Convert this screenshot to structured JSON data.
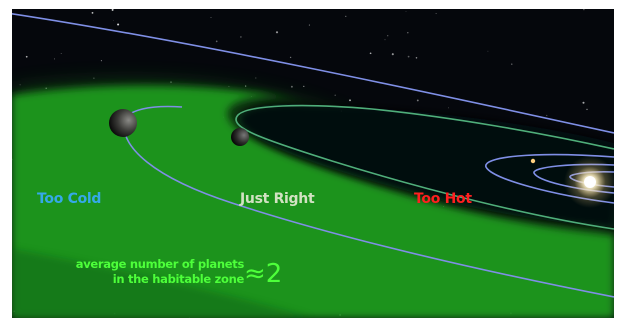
{
  "zones": {
    "too_cold": "Too Cold",
    "just_right": "Just Right",
    "too_hot": "Too Hot"
  },
  "caption": {
    "line1": "average number of planets",
    "line2": "in the habitable zone"
  },
  "approx_value": "≈2",
  "colors": {
    "space": "#05070c",
    "habitable_zone": "#1f9a1f",
    "orbit": "#7f8fe6",
    "too_cold": "#35a9e8",
    "just_right": "#d2e2c2",
    "too_hot": "#ff1f1f",
    "caption": "#4dff3a",
    "star": "#fff2c8"
  }
}
